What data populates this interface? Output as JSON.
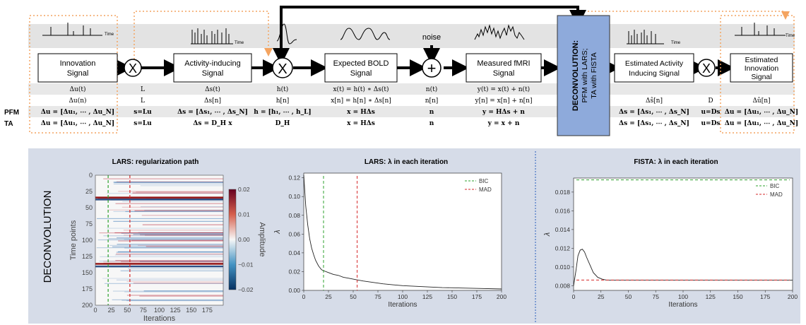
{
  "signals": {
    "innovation": "Innovation Signal",
    "activity": "Activity-inducing Signal",
    "bold": "Expected BOLD Signal",
    "fmri": "Measured fMRI Signal",
    "est_activity": "Estimated Activity Inducing Signal",
    "est_innovation": "Estimated Innovation Signal",
    "time_label": "Time",
    "noise_label": "noise",
    "multiply_symbol": "X",
    "plus_symbol": "+"
  },
  "deconv_box": {
    "title": "DECONVOLUTION:",
    "line1": "PFM with LARS;",
    "line2": "TA with FISTA"
  },
  "table": {
    "row_labels": [
      "",
      "",
      "PFM",
      "TA"
    ],
    "rows": [
      [
        "Δu(t)",
        "L",
        "Δs(t)",
        "h(t)",
        "x(t) = h(t) ∗ Δs(t)",
        "n(t)",
        "y(t) = x(t) + n(t)",
        "",
        "",
        ""
      ],
      [
        "Δu(n)",
        "L",
        "Δs[n]",
        "h[n]",
        "x[n] = h[n] ∗ Δs[n]",
        "n[n]",
        "y[n] = x[n] + n[n]",
        "Δŝ[n]",
        "D",
        "Δû[n]"
      ],
      [
        "Δu = [Δu₁, ⋯ , Δu_N]",
        "s=Lu",
        "Δs = [Δs₁, ⋯ , Δs_N]",
        "h = [h₁, ⋯ , h_L]",
        "x = HΔs",
        "n",
        "y = HΔs + n",
        "Δs = [Δs₁, ⋯ , Δs_N]",
        "u=Ds",
        "Δu = [Δu₁, ⋯ , Δu_N]"
      ],
      [
        "Δu = [Δu₁, ⋯ , Δu_N]",
        "s=Lu",
        "Δs = D_H x",
        "D_H",
        "x = HΔs",
        "n",
        "y = x + n",
        "Δs = [Δs₁, ⋯ , Δs_N]",
        "u=Ds",
        "Δu = [Δu₁, ⋯ , Δu_N]"
      ]
    ]
  },
  "panel": {
    "side_label": "DECONVOLUTION"
  },
  "colors": {
    "panel_bg": "#d6dce8",
    "deconv_box": "#8eaadb",
    "dotted_orange": "#f4a460",
    "bic": "#2ca02c",
    "mad": "#d62728"
  },
  "chart_data": [
    {
      "type": "heatmap",
      "title": "LARS: regularization path",
      "xlabel": "Iterations",
      "ylabel": "Time points",
      "x_ticks": [
        0,
        25,
        50,
        75,
        100,
        125,
        150,
        175
      ],
      "y_ticks": [
        0,
        25,
        50,
        75,
        100,
        125,
        150,
        175,
        200
      ],
      "xlim": [
        0,
        200
      ],
      "ylim": [
        0,
        200
      ],
      "colorbar_label": "Amplitude",
      "colorbar_ticks": [
        "0.02",
        "0.01",
        "0.00",
        "−0.01",
        "−0.02"
      ],
      "vlines": [
        {
          "x": 20,
          "color": "#2ca02c"
        },
        {
          "x": 54,
          "color": "#d62728"
        }
      ],
      "strong_rows": [
        {
          "y": 33,
          "sign": 1
        },
        {
          "y": 135,
          "sign": 1
        },
        {
          "y": 36,
          "sign": -1
        },
        {
          "y": 139,
          "sign": -1
        }
      ]
    },
    {
      "type": "line",
      "title": "LARS: λ in each iteration",
      "xlabel": "Iterations",
      "ylabel": "λ",
      "xlim": [
        0,
        200
      ],
      "ylim": [
        0,
        0.125
      ],
      "x_ticks": [
        0,
        25,
        50,
        75,
        100,
        125,
        150,
        175,
        200
      ],
      "y_ticks": [
        "0.00",
        "0.02",
        "0.04",
        "0.06",
        "0.08",
        "0.10",
        "0.12"
      ],
      "series": [
        {
          "x": [
            0,
            2,
            4,
            6,
            8,
            10,
            12,
            15,
            18,
            20,
            25,
            30,
            35,
            40,
            45,
            50,
            55,
            60,
            70,
            80,
            90,
            100,
            120,
            140,
            160,
            180,
            200
          ],
          "y": [
            0.123,
            0.09,
            0.07,
            0.055,
            0.045,
            0.038,
            0.032,
            0.026,
            0.022,
            0.021,
            0.019,
            0.017,
            0.016,
            0.014,
            0.013,
            0.012,
            0.011,
            0.01,
            0.0085,
            0.007,
            0.006,
            0.005,
            0.004,
            0.003,
            0.0025,
            0.002,
            0.0015
          ]
        }
      ],
      "vlines": [
        {
          "name": "BIC",
          "x": 20,
          "color": "#2ca02c"
        },
        {
          "name": "MAD",
          "x": 54,
          "color": "#d62728"
        }
      ],
      "legend": [
        "BIC",
        "MAD"
      ]
    },
    {
      "type": "line",
      "title": "FISTA: λ in each iteration",
      "xlabel": "Iterations",
      "ylabel": "λ",
      "xlim": [
        0,
        200
      ],
      "ylim": [
        0.0075,
        0.0195
      ],
      "x_ticks": [
        0,
        25,
        50,
        75,
        100,
        125,
        150,
        175,
        200
      ],
      "y_ticks": [
        "0.008",
        "0.010",
        "0.012",
        "0.014",
        "0.016",
        "0.018"
      ],
      "series": [
        {
          "x": [
            0,
            2,
            4,
            6,
            8,
            10,
            12,
            15,
            18,
            22,
            26,
            30,
            35,
            40,
            50,
            60,
            80,
            100,
            150,
            200
          ],
          "y": [
            0.008,
            0.0095,
            0.0112,
            0.0118,
            0.0119,
            0.0116,
            0.011,
            0.0102,
            0.0094,
            0.0089,
            0.0087,
            0.0086,
            0.0086,
            0.0086,
            0.0086,
            0.0086,
            0.0086,
            0.0086,
            0.0086,
            0.0086
          ]
        }
      ],
      "hlines": [
        {
          "name": "BIC",
          "y": 0.0193,
          "color": "#2ca02c"
        },
        {
          "name": "MAD",
          "y": 0.0086,
          "color": "#d62728"
        }
      ],
      "legend": [
        "BIC",
        "MAD"
      ]
    }
  ]
}
